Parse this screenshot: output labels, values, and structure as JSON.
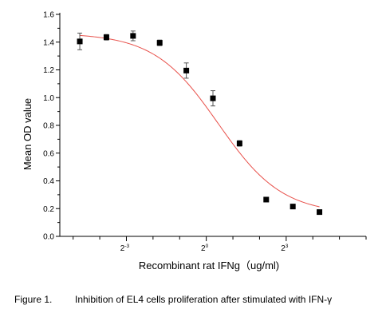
{
  "chart_data": {
    "type": "scatter",
    "title": "",
    "xlabel": "Recombinant rat IFNg（ug/ml)",
    "ylabel": "Mean OD value",
    "x_scale": "log2",
    "xlim": [
      -5.5,
      6.0
    ],
    "ylim": [
      0.0,
      1.6
    ],
    "y_ticks": [
      "0.0",
      "0.2",
      "0.4",
      "0.6",
      "0.8",
      "1.0",
      "1.2",
      "1.4",
      "1.6"
    ],
    "x_tick_labels": [
      {
        "base": "2",
        "exp": "-3",
        "at": -3
      },
      {
        "base": "2",
        "exp": "0",
        "at": 0
      },
      {
        "base": "2",
        "exp": "3",
        "at": 3
      }
    ],
    "grid": false,
    "series": [
      {
        "marker": "square",
        "color": "#000000",
        "points": [
          {
            "x": -4.75,
            "y": 1.405,
            "err": 0.06
          },
          {
            "x": -3.75,
            "y": 1.435,
            "err": 0.02
          },
          {
            "x": -2.75,
            "y": 1.445,
            "err": 0.035
          },
          {
            "x": -1.75,
            "y": 1.395,
            "err": 0.02
          },
          {
            "x": -0.75,
            "y": 1.195,
            "err": 0.055
          },
          {
            "x": 0.25,
            "y": 0.995,
            "err": 0.055
          },
          {
            "x": 1.25,
            "y": 0.67,
            "err": 0.02
          },
          {
            "x": 2.25,
            "y": 0.265,
            "err": 0.01
          },
          {
            "x": 3.25,
            "y": 0.215,
            "err": 0.01
          },
          {
            "x": 4.25,
            "y": 0.175,
            "err": 0.01
          }
        ]
      }
    ],
    "fit_curve": {
      "model": "4PL",
      "color": "#e8504a",
      "top": 1.465,
      "bottom": 0.16,
      "x50": 0.45,
      "slope": 1.2,
      "x_range": [
        -4.75,
        4.25
      ]
    }
  },
  "caption": {
    "label": "Figure 1.",
    "text": "Inhibition of EL4 cells proliferation after stimulated with IFN-γ"
  }
}
